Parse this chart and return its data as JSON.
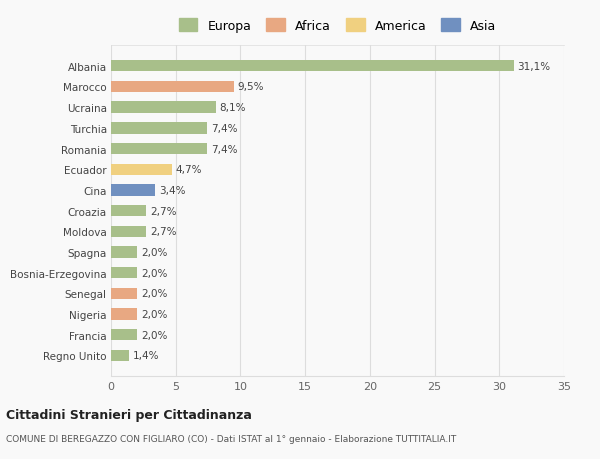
{
  "countries": [
    "Albania",
    "Marocco",
    "Ucraina",
    "Turchia",
    "Romania",
    "Ecuador",
    "Cina",
    "Croazia",
    "Moldova",
    "Spagna",
    "Bosnia-Erzegovina",
    "Senegal",
    "Nigeria",
    "Francia",
    "Regno Unito"
  ],
  "values": [
    31.1,
    9.5,
    8.1,
    7.4,
    7.4,
    4.7,
    3.4,
    2.7,
    2.7,
    2.0,
    2.0,
    2.0,
    2.0,
    2.0,
    1.4
  ],
  "labels": [
    "31,1%",
    "9,5%",
    "8,1%",
    "7,4%",
    "7,4%",
    "4,7%",
    "3,4%",
    "2,7%",
    "2,7%",
    "2,0%",
    "2,0%",
    "2,0%",
    "2,0%",
    "2,0%",
    "1,4%"
  ],
  "colors": [
    "#a8bf8a",
    "#e8a882",
    "#a8bf8a",
    "#a8bf8a",
    "#a8bf8a",
    "#f0d080",
    "#7090c0",
    "#a8bf8a",
    "#a8bf8a",
    "#a8bf8a",
    "#a8bf8a",
    "#e8a882",
    "#e8a882",
    "#a8bf8a",
    "#a8bf8a"
  ],
  "legend_labels": [
    "Europa",
    "Africa",
    "America",
    "Asia"
  ],
  "legend_colors": [
    "#a8bf8a",
    "#e8a882",
    "#f0d080",
    "#7090c0"
  ],
  "title": "Cittadini Stranieri per Cittadinanza",
  "subtitle": "COMUNE DI BEREGAZZO CON FIGLIARO (CO) - Dati ISTAT al 1° gennaio - Elaborazione TUTTITALIA.IT",
  "xlim": [
    0,
    35
  ],
  "xticks": [
    0,
    5,
    10,
    15,
    20,
    25,
    30,
    35
  ],
  "background_color": "#f9f9f9",
  "grid_color": "#dddddd",
  "bar_height": 0.55
}
